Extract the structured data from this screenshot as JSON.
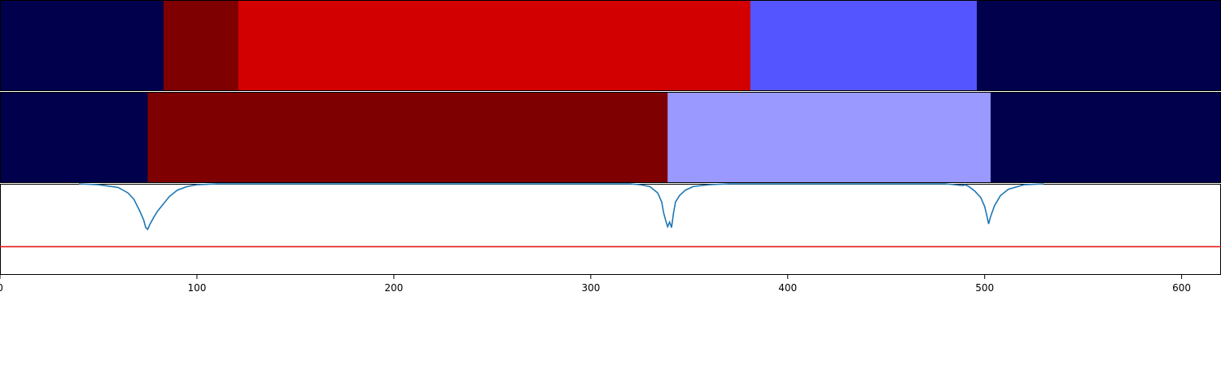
{
  "chart_data": [
    {
      "type": "heatmap",
      "x": [
        0,
        620
      ],
      "segments": [
        {
          "start": 0,
          "end": 83,
          "color": "#00004c"
        },
        {
          "start": 83,
          "end": 121,
          "color": "#7f0000"
        },
        {
          "start": 121,
          "end": 381,
          "color": "#d20000"
        },
        {
          "start": 381,
          "end": 496,
          "color": "#5555ff"
        },
        {
          "start": 496,
          "end": 620,
          "color": "#00004c"
        }
      ]
    },
    {
      "type": "heatmap",
      "x": [
        0,
        620
      ],
      "segments": [
        {
          "start": 0,
          "end": 75,
          "color": "#00004c"
        },
        {
          "start": 75,
          "end": 339,
          "color": "#7f0000"
        },
        {
          "start": 339,
          "end": 503,
          "color": "#9999ff"
        },
        {
          "start": 503,
          "end": 620,
          "color": "#00004c"
        }
      ]
    },
    {
      "type": "line",
      "xlim": [
        0,
        620
      ],
      "ylim": [
        0,
        1
      ],
      "xticks": [
        "0",
        "100",
        "200",
        "300",
        "400",
        "500",
        "600"
      ],
      "grid": false,
      "series": [
        {
          "color": "#1f77b4",
          "x": [
            40,
            50,
            60,
            65,
            68,
            71,
            73,
            74,
            75,
            76,
            78,
            80,
            83,
            86,
            90,
            95,
            100,
            110,
            320,
            325,
            330,
            334,
            336,
            337,
            338,
            339,
            340,
            341,
            342,
            343,
            345,
            348,
            352,
            360,
            370,
            480,
            485,
            489,
            490,
            492,
            495,
            498,
            500,
            501,
            502,
            503,
            505,
            508,
            512,
            520,
            530
          ],
          "y": [
            1.0,
            0.99,
            0.96,
            0.9,
            0.83,
            0.7,
            0.6,
            0.52,
            0.5,
            0.55,
            0.63,
            0.7,
            0.78,
            0.86,
            0.93,
            0.97,
            0.99,
            1.0,
            1.0,
            0.99,
            0.97,
            0.9,
            0.8,
            0.68,
            0.6,
            0.53,
            0.58,
            0.52,
            0.68,
            0.8,
            0.87,
            0.93,
            0.97,
            0.99,
            1.0,
            1.0,
            0.99,
            0.98,
            0.99,
            0.97,
            0.92,
            0.85,
            0.75,
            0.66,
            0.56,
            0.64,
            0.76,
            0.87,
            0.94,
            0.99,
            1.0
          ]
        },
        {
          "color": "#e41a1c",
          "x": [
            0,
            620
          ],
          "y": [
            0.31,
            0.31
          ]
        }
      ]
    }
  ]
}
